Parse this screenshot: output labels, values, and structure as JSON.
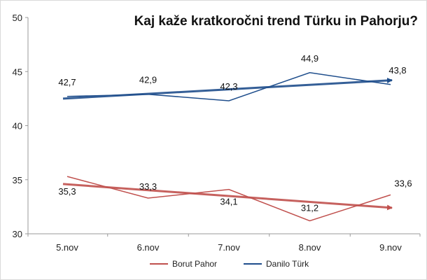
{
  "chart_data": {
    "type": "line",
    "title": "Kaj kaže kratkoročni trend Türku in Pahorju?",
    "categories": [
      "5.nov",
      "6.nov",
      "7.nov",
      "8.nov",
      "9.nov"
    ],
    "ylim": [
      30,
      50
    ],
    "yticks": [
      30,
      35,
      40,
      45,
      50
    ],
    "grid": false,
    "legend_position": "bottom",
    "series": [
      {
        "name": "Borut Pahor",
        "color": "#c0504d",
        "values": [
          35.3,
          33.3,
          34.1,
          31.2,
          33.6
        ],
        "labels": [
          "35,3",
          "33,3",
          "34,1",
          "31,2",
          "33,6"
        ],
        "trend": [
          34.6,
          32.4
        ]
      },
      {
        "name": "Danilo Türk",
        "color": "#1f4e8c",
        "values": [
          42.7,
          42.9,
          42.3,
          44.9,
          43.8
        ],
        "labels": [
          "42,7",
          "42,9",
          "42,3",
          "44,9",
          "43,8"
        ],
        "trend": [
          42.5,
          44.2
        ]
      }
    ]
  }
}
